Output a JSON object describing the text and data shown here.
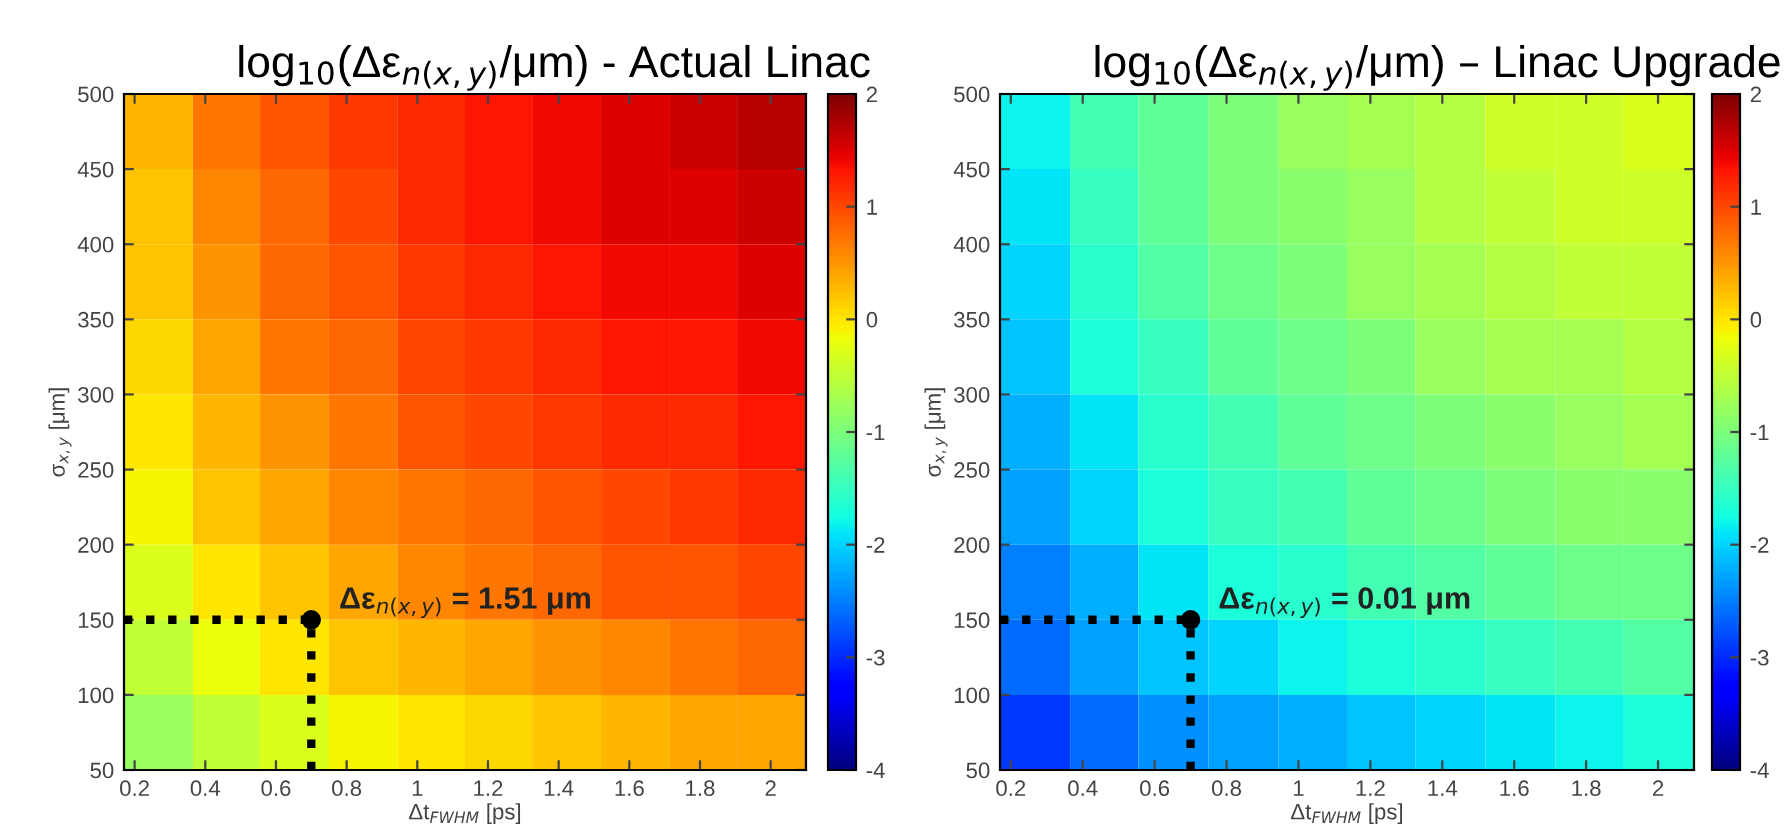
{
  "chart_data": [
    {
      "type": "heatmap",
      "title": "log$_{10}$(Δε$_{n(x,y)}$/μm) - Actual Linac",
      "xlabel": "Δt$_{FWHM}$ [ps]",
      "ylabel": "σ$_{x,y}$ [μm]",
      "x": [
        0.27,
        0.46,
        0.65,
        0.85,
        1.04,
        1.23,
        1.42,
        1.62,
        1.81,
        2.0
      ],
      "y": [
        475,
        425,
        375,
        325,
        275,
        225,
        175,
        125,
        75
      ],
      "cells": [
        [
          0.3,
          0.7,
          0.9,
          1.1,
          1.2,
          1.3,
          1.4,
          1.5,
          1.6,
          1.7
        ],
        [
          0.2,
          0.6,
          0.8,
          1.0,
          1.2,
          1.3,
          1.4,
          1.5,
          1.5,
          1.6
        ],
        [
          0.2,
          0.5,
          0.8,
          0.9,
          1.1,
          1.2,
          1.3,
          1.4,
          1.4,
          1.5
        ],
        [
          0.1,
          0.4,
          0.7,
          0.8,
          1.0,
          1.1,
          1.2,
          1.3,
          1.3,
          1.4
        ],
        [
          0.0,
          0.3,
          0.5,
          0.7,
          0.9,
          1.0,
          1.1,
          1.2,
          1.2,
          1.3
        ],
        [
          -0.1,
          0.2,
          0.4,
          0.6,
          0.7,
          0.8,
          0.9,
          1.0,
          1.1,
          1.2
        ],
        [
          -0.3,
          0.0,
          0.2,
          0.4,
          0.6,
          0.7,
          0.8,
          0.9,
          0.9,
          1.0
        ],
        [
          -0.5,
          -0.2,
          0.0,
          0.2,
          0.3,
          0.4,
          0.5,
          0.6,
          0.7,
          0.8
        ],
        [
          -0.8,
          -0.5,
          -0.3,
          -0.1,
          0.0,
          0.1,
          0.2,
          0.3,
          0.4,
          0.4
        ]
      ],
      "xlim": [
        0.17,
        2.1
      ],
      "ylim": [
        50,
        500
      ],
      "xticks": [
        0.2,
        0.4,
        0.6,
        0.8,
        1,
        1.2,
        1.4,
        1.6,
        1.8,
        2
      ],
      "yticks": [
        50,
        100,
        150,
        200,
        250,
        300,
        350,
        400,
        450,
        500
      ],
      "clim": [
        -4,
        2
      ],
      "cticks": [
        -4,
        -3,
        -2,
        -1,
        0,
        1,
        2
      ],
      "annotations": [
        {
          "text": "Δε$_{n(x,y)}$ = 1.51 μm",
          "x": 0.7,
          "y": 150
        }
      ]
    },
    {
      "type": "heatmap",
      "title": "log$_{10}$(Δε$_{n(x,y)}$/μm) – Linac Upgrade",
      "xlabel": "Δt$_{FWHM}$ [ps]",
      "ylabel": "σ$_{x,y}$ [μm]",
      "x": [
        0.27,
        0.46,
        0.65,
        0.85,
        1.04,
        1.23,
        1.42,
        1.62,
        1.81,
        2.0
      ],
      "y": [
        475,
        425,
        375,
        325,
        275,
        225,
        175,
        125,
        75
      ],
      "cells": [
        [
          -1.8,
          -1.4,
          -1.2,
          -1.0,
          -0.8,
          -0.7,
          -0.6,
          -0.4,
          -0.4,
          -0.3
        ],
        [
          -1.9,
          -1.5,
          -1.2,
          -1.0,
          -0.9,
          -0.8,
          -0.6,
          -0.5,
          -0.4,
          -0.4
        ],
        [
          -2.0,
          -1.6,
          -1.3,
          -1.1,
          -1.0,
          -0.8,
          -0.7,
          -0.6,
          -0.5,
          -0.5
        ],
        [
          -2.1,
          -1.7,
          -1.5,
          -1.2,
          -1.1,
          -1.0,
          -0.8,
          -0.7,
          -0.7,
          -0.6
        ],
        [
          -2.2,
          -1.9,
          -1.6,
          -1.4,
          -1.2,
          -1.1,
          -1.0,
          -0.9,
          -0.8,
          -0.7
        ],
        [
          -2.3,
          -2.0,
          -1.7,
          -1.5,
          -1.4,
          -1.2,
          -1.1,
          -1.0,
          -0.9,
          -0.9
        ],
        [
          -2.5,
          -2.2,
          -1.9,
          -1.7,
          -1.6,
          -1.4,
          -1.3,
          -1.2,
          -1.1,
          -1.1
        ],
        [
          -2.6,
          -2.3,
          -2.1,
          -2.0,
          -1.8,
          -1.7,
          -1.6,
          -1.5,
          -1.4,
          -1.3
        ],
        [
          -2.9,
          -2.6,
          -2.4,
          -2.3,
          -2.2,
          -2.1,
          -2.0,
          -1.9,
          -1.8,
          -1.7
        ]
      ],
      "xlim": [
        0.17,
        2.1
      ],
      "ylim": [
        50,
        500
      ],
      "xticks": [
        0.2,
        0.4,
        0.6,
        0.8,
        1,
        1.2,
        1.4,
        1.6,
        1.8,
        2
      ],
      "yticks": [
        50,
        100,
        150,
        200,
        250,
        300,
        350,
        400,
        450,
        500
      ],
      "clim": [
        -4,
        2
      ],
      "cticks": [
        -4,
        -3,
        -2,
        -1,
        0,
        1,
        2
      ],
      "annotations": [
        {
          "text": "Δε$_{n(x,y)}$ = 0.01 μm",
          "x": 0.7,
          "y": 150
        }
      ]
    }
  ]
}
